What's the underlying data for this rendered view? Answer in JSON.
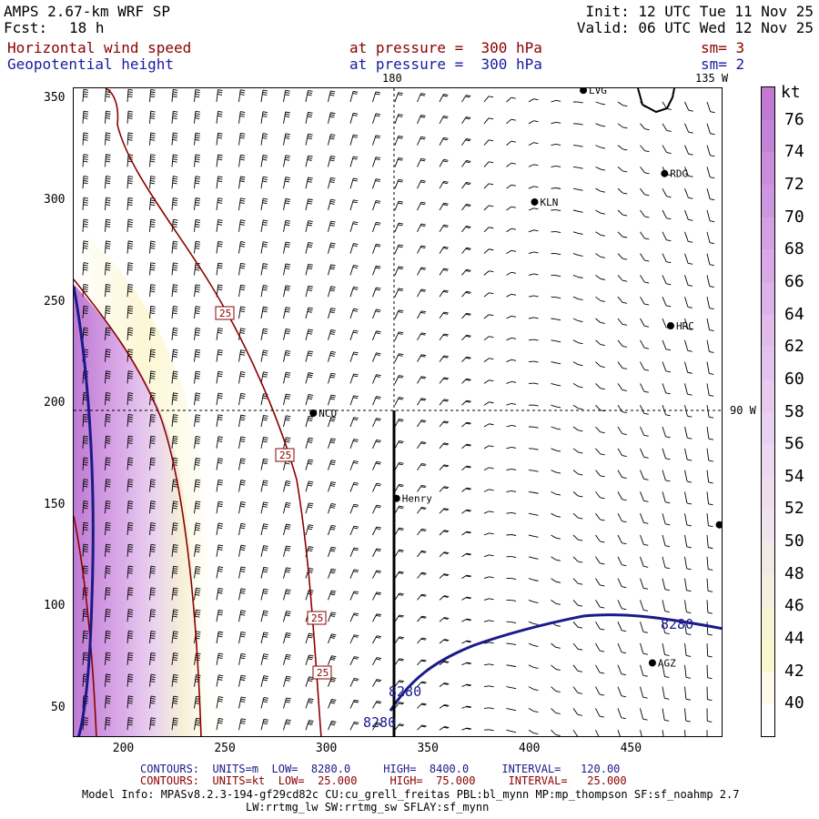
{
  "header": {
    "model": "AMPS 2.67-km WRF SP",
    "fcst_label": "Fcst:",
    "fcst_value": "18 h",
    "init": "Init: 12 UTC Tue 11 Nov 25",
    "valid": "Valid: 06 UTC Wed 12 Nov 25",
    "field1": "Horizontal wind speed",
    "field1_level": "at pressure =  300 hPa",
    "field1_sm": "sm= 3",
    "field2": "Geopotential height",
    "field2_level": "at pressure =  300 hPa",
    "field2_sm": "sm= 2"
  },
  "map": {
    "x_ticks": [
      "200",
      "250",
      "300",
      "350",
      "400",
      "450"
    ],
    "y_ticks": [
      "350",
      "300",
      "250",
      "200",
      "150",
      "100",
      "50"
    ],
    "lon_label_180": "180",
    "lon_label_135w": "135 W",
    "lon_label_90w": "90 W",
    "stations": [
      {
        "name": "NCO",
        "x": 293,
        "y": 196
      },
      {
        "name": "Henry",
        "x": 334,
        "y": 154
      },
      {
        "name": "KLN",
        "x": 402,
        "y": 300
      },
      {
        "name": "RDG",
        "x": 466,
        "y": 314
      },
      {
        "name": "HRC",
        "x": 469,
        "y": 239
      },
      {
        "name": "AGZ",
        "x": 460,
        "y": 73
      },
      {
        "name": "LVG",
        "x": 426,
        "y": 355
      },
      {
        "name": "",
        "x": 493,
        "y": 141
      }
    ],
    "height_contour_label": "8280",
    "speed_contour_label": "25"
  },
  "colorbar": {
    "unit": "kt",
    "labels": [
      "76",
      "74",
      "72",
      "70",
      "68",
      "66",
      "64",
      "62",
      "60",
      "58",
      "56",
      "54",
      "52",
      "50",
      "48",
      "46",
      "44",
      "42",
      "40"
    ],
    "colors": [
      "#bf7ad3",
      "#c583d8",
      "#ca8ddc",
      "#cf96e0",
      "#d3a0e3",
      "#d8a9e6",
      "#dcb2e9",
      "#e0bbec",
      "#e3c3ee",
      "#e6caef",
      "#e9d1f0",
      "#ecd8f0",
      "#efdef0",
      "#f2e4ee",
      "#f5e9e8",
      "#f7eee0",
      "#f9f2d6",
      "#fbf6cf",
      "#fdfae8",
      "#ffffff"
    ]
  },
  "footer": {
    "contours1": "CONTOURS:  UNITS=m  LOW=  8280.0     HIGH=  8400.0     INTERVAL=   120.00",
    "contours2": "CONTOURS:  UNITS=kt  LOW=  25.000     HIGH=  75.000     INTERVAL=   25.000",
    "model_info": "Model Info: MPASv8.2.3-194-gf29cd82c CU:cu_grell_freitas PBL:bl_mynn MP:mp_thompson SF:sf_noahmp 2.7",
    "model_info2": "LW:rrtmg_lw SW:rrtmg_sw SFLAY:sf_mynn"
  }
}
